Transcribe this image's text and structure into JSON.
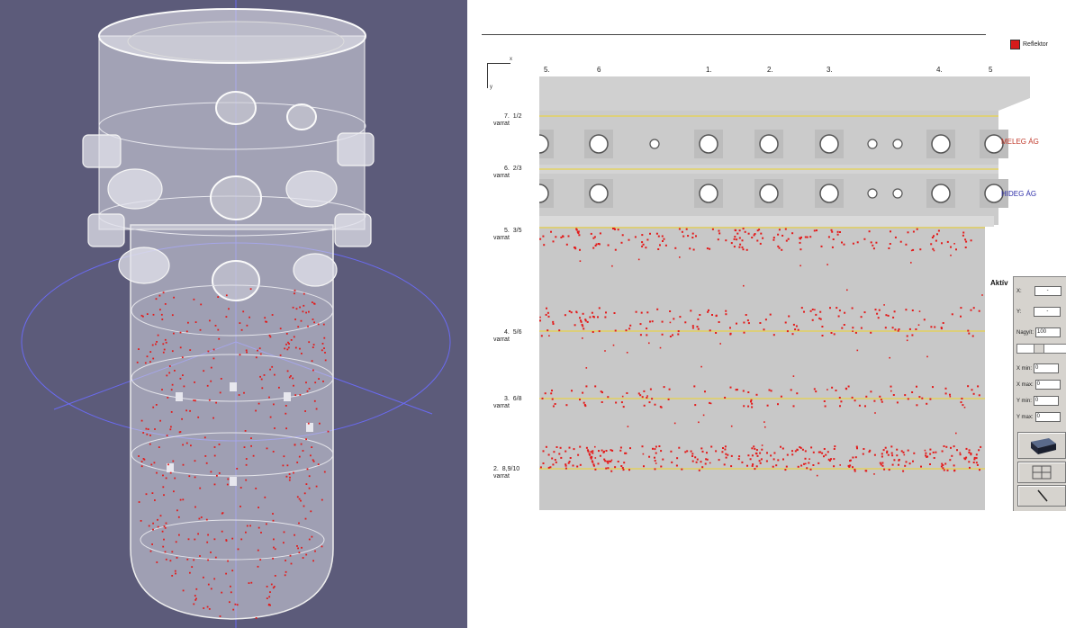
{
  "legend": {
    "label": "Reflektor",
    "color": "#d61b1b"
  },
  "axes": {
    "x_label": "x",
    "y_label": "y"
  },
  "columns": [
    "5.",
    "6",
    "1.",
    "2.",
    "3.",
    "4.",
    "5"
  ],
  "levels": [
    {
      "num": "7.",
      "frac": "1/2",
      "sub": "varrat"
    },
    {
      "num": "6.",
      "frac": "2/3",
      "sub": "varrat"
    },
    {
      "num": "5.",
      "frac": "3/5",
      "sub": "varrat"
    },
    {
      "num": "4.",
      "frac": "5/6",
      "sub": "varrat"
    },
    {
      "num": "3.",
      "frac": "6/8",
      "sub": "varrat"
    },
    {
      "num": "2.",
      "frac": "8,9/10",
      "sub": "varrat"
    }
  ],
  "branches": {
    "hot": {
      "label": "MELEG ÁG",
      "color": "#c0392b"
    },
    "cold": {
      "label": "HIDEG ÁG",
      "color": "#2c2ca8"
    }
  },
  "panel": {
    "title": "Aktív",
    "x_label": "X:",
    "x_value": "-",
    "y_label": "Y:",
    "y_value": "-",
    "size_label": "Nagyít:",
    "size_value": "100",
    "xmin_label": "X min:",
    "xmin_value": "0",
    "xmax_label": "X max:",
    "xmax_value": "0",
    "ymin_label": "Y min:",
    "ymin_value": "0",
    "ymax_label": "Y max:",
    "ymax_value": "0"
  },
  "colors": {
    "viewport_bg": "#5c5b7a",
    "plot_bg": "#c8c8c8",
    "weld_line": "#e8d24a",
    "point": "#e31b1b"
  }
}
